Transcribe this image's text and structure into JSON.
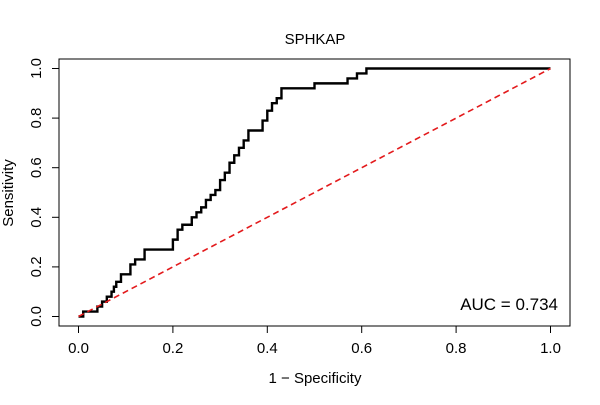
{
  "chart_data": {
    "type": "line",
    "title": "SPHKAP",
    "xlabel": "1 − Specificity",
    "ylabel": "Sensitivity",
    "xlim": [
      0,
      1
    ],
    "ylim": [
      0,
      1
    ],
    "x_ticks": [
      "0.0",
      "0.2",
      "0.4",
      "0.6",
      "0.8",
      "1.0"
    ],
    "y_ticks": [
      "0.0",
      "0.2",
      "0.4",
      "0.6",
      "0.8",
      "1.0"
    ],
    "grid": false,
    "annotation": "AUC = 0.734",
    "series": [
      {
        "color": "#000000",
        "style": "solid",
        "points": [
          [
            0.0,
            0.0
          ],
          [
            0.01,
            0.0
          ],
          [
            0.01,
            0.02
          ],
          [
            0.04,
            0.02
          ],
          [
            0.04,
            0.04
          ],
          [
            0.05,
            0.04
          ],
          [
            0.05,
            0.06
          ],
          [
            0.06,
            0.06
          ],
          [
            0.06,
            0.08
          ],
          [
            0.07,
            0.08
          ],
          [
            0.07,
            0.1
          ],
          [
            0.075,
            0.1
          ],
          [
            0.075,
            0.12
          ],
          [
            0.08,
            0.12
          ],
          [
            0.08,
            0.14
          ],
          [
            0.09,
            0.14
          ],
          [
            0.09,
            0.17
          ],
          [
            0.11,
            0.17
          ],
          [
            0.11,
            0.21
          ],
          [
            0.12,
            0.21
          ],
          [
            0.12,
            0.23
          ],
          [
            0.14,
            0.23
          ],
          [
            0.14,
            0.27
          ],
          [
            0.2,
            0.27
          ],
          [
            0.2,
            0.31
          ],
          [
            0.21,
            0.31
          ],
          [
            0.21,
            0.35
          ],
          [
            0.22,
            0.35
          ],
          [
            0.22,
            0.37
          ],
          [
            0.24,
            0.37
          ],
          [
            0.24,
            0.4
          ],
          [
            0.25,
            0.4
          ],
          [
            0.25,
            0.42
          ],
          [
            0.26,
            0.42
          ],
          [
            0.26,
            0.44
          ],
          [
            0.27,
            0.44
          ],
          [
            0.27,
            0.47
          ],
          [
            0.28,
            0.47
          ],
          [
            0.28,
            0.49
          ],
          [
            0.29,
            0.49
          ],
          [
            0.29,
            0.51
          ],
          [
            0.3,
            0.51
          ],
          [
            0.3,
            0.55
          ],
          [
            0.31,
            0.55
          ],
          [
            0.31,
            0.58
          ],
          [
            0.32,
            0.58
          ],
          [
            0.32,
            0.62
          ],
          [
            0.33,
            0.62
          ],
          [
            0.33,
            0.65
          ],
          [
            0.34,
            0.65
          ],
          [
            0.34,
            0.68
          ],
          [
            0.35,
            0.68
          ],
          [
            0.35,
            0.71
          ],
          [
            0.36,
            0.71
          ],
          [
            0.36,
            0.75
          ],
          [
            0.39,
            0.75
          ],
          [
            0.39,
            0.79
          ],
          [
            0.4,
            0.79
          ],
          [
            0.4,
            0.83
          ],
          [
            0.41,
            0.83
          ],
          [
            0.41,
            0.86
          ],
          [
            0.42,
            0.86
          ],
          [
            0.42,
            0.88
          ],
          [
            0.43,
            0.88
          ],
          [
            0.43,
            0.92
          ],
          [
            0.5,
            0.92
          ],
          [
            0.5,
            0.94
          ],
          [
            0.57,
            0.94
          ],
          [
            0.57,
            0.96
          ],
          [
            0.59,
            0.96
          ],
          [
            0.59,
            0.98
          ],
          [
            0.61,
            0.98
          ],
          [
            0.61,
            1.0
          ],
          [
            1.0,
            1.0
          ]
        ]
      },
      {
        "color": "#e31a1c",
        "style": "dashed",
        "points": [
          [
            0.0,
            0.0
          ],
          [
            1.0,
            1.0
          ]
        ]
      }
    ]
  }
}
